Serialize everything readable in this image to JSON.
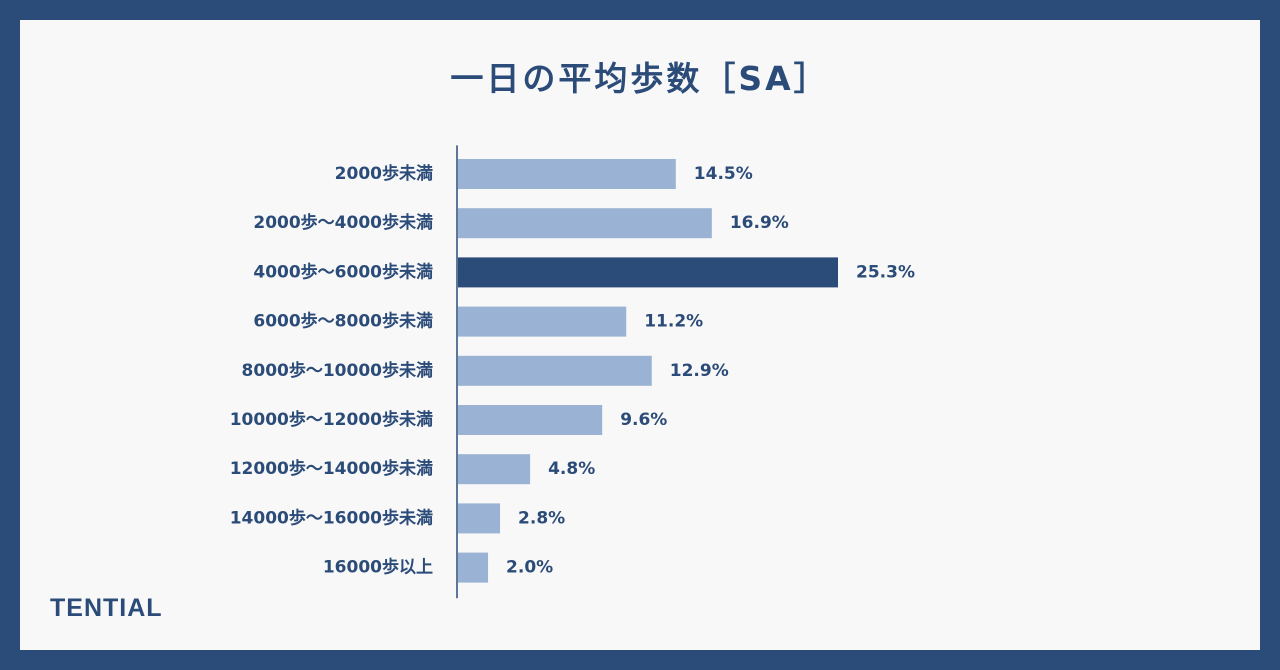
{
  "colors": {
    "frame": "#2b4b78",
    "background": "#f8f8f8",
    "bar_default": "#9ab2d3",
    "bar_highlight": "#2b4b78",
    "text": "#2b4b78",
    "axis": "#2b4b78"
  },
  "brand": {
    "logo_text": "TENTIAL"
  },
  "chart_data": {
    "type": "bar",
    "orientation": "horizontal",
    "title": "一日の平均歩数［SA］",
    "value_suffix": "%",
    "categories": [
      "2000歩未満",
      "2000歩～4000歩未満",
      "4000歩～6000歩未満",
      "6000歩～8000歩未満",
      "8000歩～10000歩未満",
      "10000歩～12000歩未満",
      "12000歩～14000歩未満",
      "14000歩～16000歩未満",
      "16000歩以上"
    ],
    "values": [
      14.5,
      16.9,
      25.3,
      11.2,
      12.9,
      9.6,
      4.8,
      2.8,
      2.0
    ],
    "value_labels": [
      "14.5%",
      "16.9%",
      "25.3%",
      "11.2%",
      "12.9%",
      "9.6%",
      "4.8%",
      "2.8%",
      "2.0%"
    ],
    "highlight_index": 2,
    "xlim": [
      0,
      40
    ],
    "xlabel": "",
    "ylabel": "",
    "grid": false,
    "legend": "none"
  }
}
